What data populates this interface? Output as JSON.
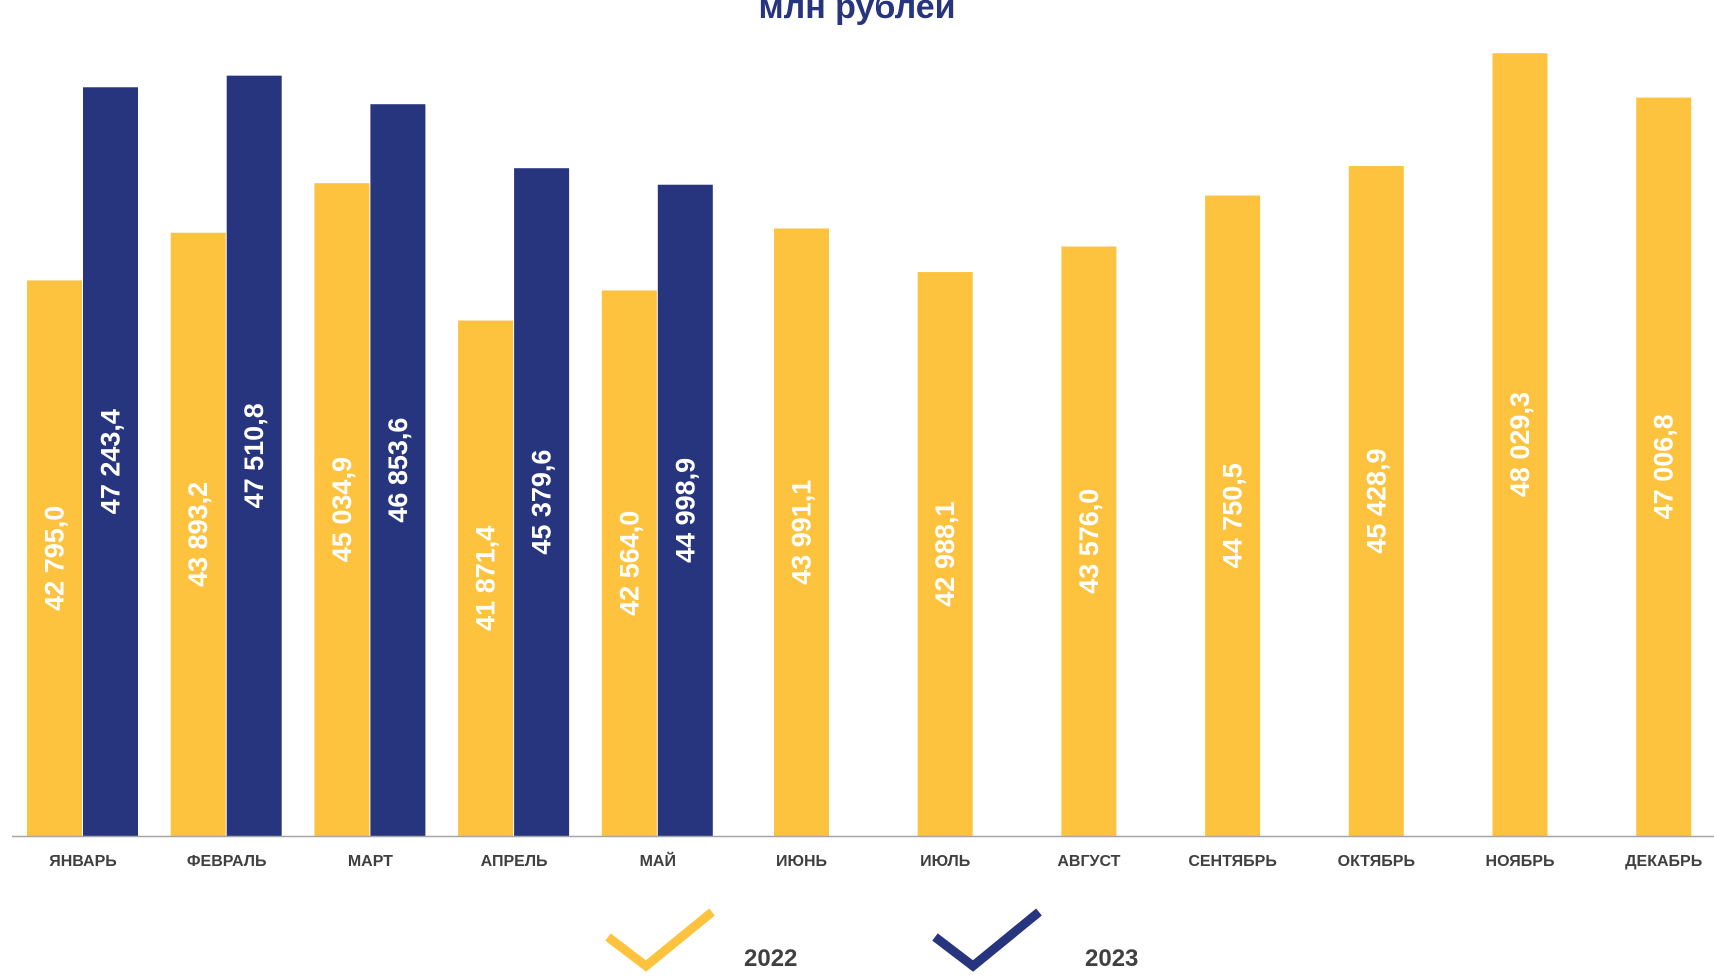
{
  "chart_data": {
    "type": "bar",
    "title": "млн рублей",
    "xlabel": "",
    "ylabel": "",
    "grid": false,
    "legend_position": "bottom-center",
    "ylim": [
      30000,
      49000
    ],
    "categories": [
      "ЯНВАРЬ",
      "ФЕВРАЛЬ",
      "МАРТ",
      "АПРЕЛЬ",
      "МАЙ",
      "ИЮНЬ",
      "ИЮЛЬ",
      "АВГУСТ",
      "СЕНТЯБРЬ",
      "ОКТЯБРЬ",
      "НОЯБРЬ",
      "ДЕКАБРЬ"
    ],
    "series": [
      {
        "name": "2022",
        "color": "#fdc33f",
        "values": [
          42795.0,
          43893.2,
          45034.9,
          41871.4,
          42564.0,
          43991.1,
          42988.1,
          43576.0,
          44750.5,
          45428.9,
          48029.3,
          47006.8
        ],
        "labels": [
          "42 795,0",
          "43 893,2",
          "45 034,9",
          "41 871,4",
          "42 564,0",
          "43 991,1",
          "42 988,1",
          "43 576,0",
          "44 750,5",
          "45 428,9",
          "48 029,3",
          "47 006,8"
        ]
      },
      {
        "name": "2023",
        "color": "#27347e",
        "values": [
          47243.4,
          47510.8,
          46853.6,
          45379.6,
          44998.9,
          null,
          null,
          null,
          null,
          null,
          null,
          null
        ],
        "labels": [
          "47 243,4",
          "47 510,8",
          "46 853,6",
          "45 379,6",
          "44 998,9",
          null,
          null,
          null,
          null,
          null,
          null,
          null
        ]
      }
    ],
    "colors": {
      "axis": "#a6a6a6",
      "category_label": "#404040",
      "value_label": "#ffffff",
      "title": "#27347e"
    }
  }
}
